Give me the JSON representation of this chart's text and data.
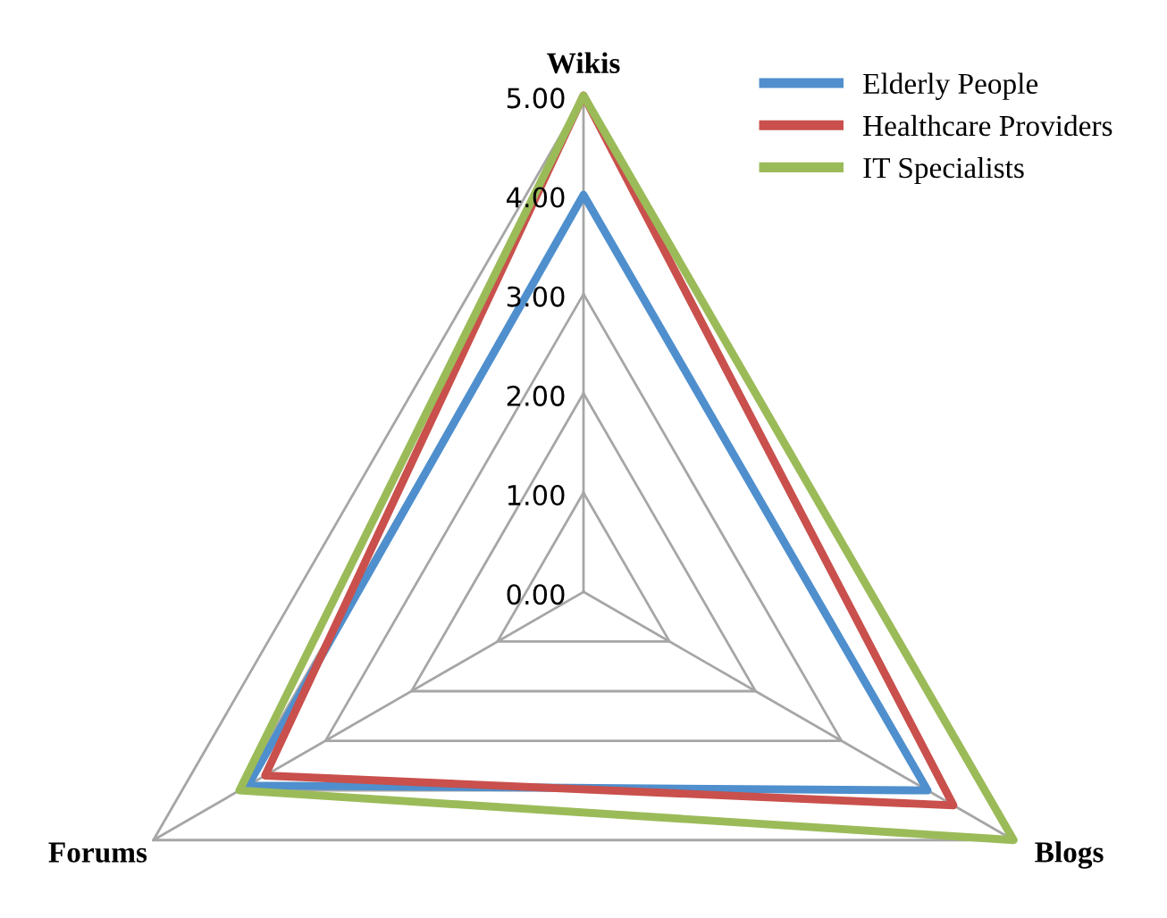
{
  "chart_data": {
    "type": "radar",
    "categories": [
      "Wikis",
      "Blogs",
      "Forums"
    ],
    "series": [
      {
        "name": "Elderly People",
        "color": "#4f8fcd",
        "values": [
          4.0,
          4.0,
          3.9
        ]
      },
      {
        "name": "Healthcare Providers",
        "color": "#c9504c",
        "values": [
          5.0,
          4.3,
          3.7
        ]
      },
      {
        "name": "IT Specialists",
        "color": "#9bbb59",
        "values": [
          5.0,
          5.0,
          4.0
        ]
      }
    ],
    "ylim": [
      0,
      5
    ],
    "yticks": [
      {
        "value": 0,
        "label": "0.00"
      },
      {
        "value": 1,
        "label": "1.00"
      },
      {
        "value": 2,
        "label": "2.00"
      },
      {
        "value": 3,
        "label": "3.00"
      },
      {
        "value": 4,
        "label": "4.00"
      },
      {
        "value": 5,
        "label": "5.00"
      }
    ],
    "legend": "top right",
    "grid": true
  }
}
